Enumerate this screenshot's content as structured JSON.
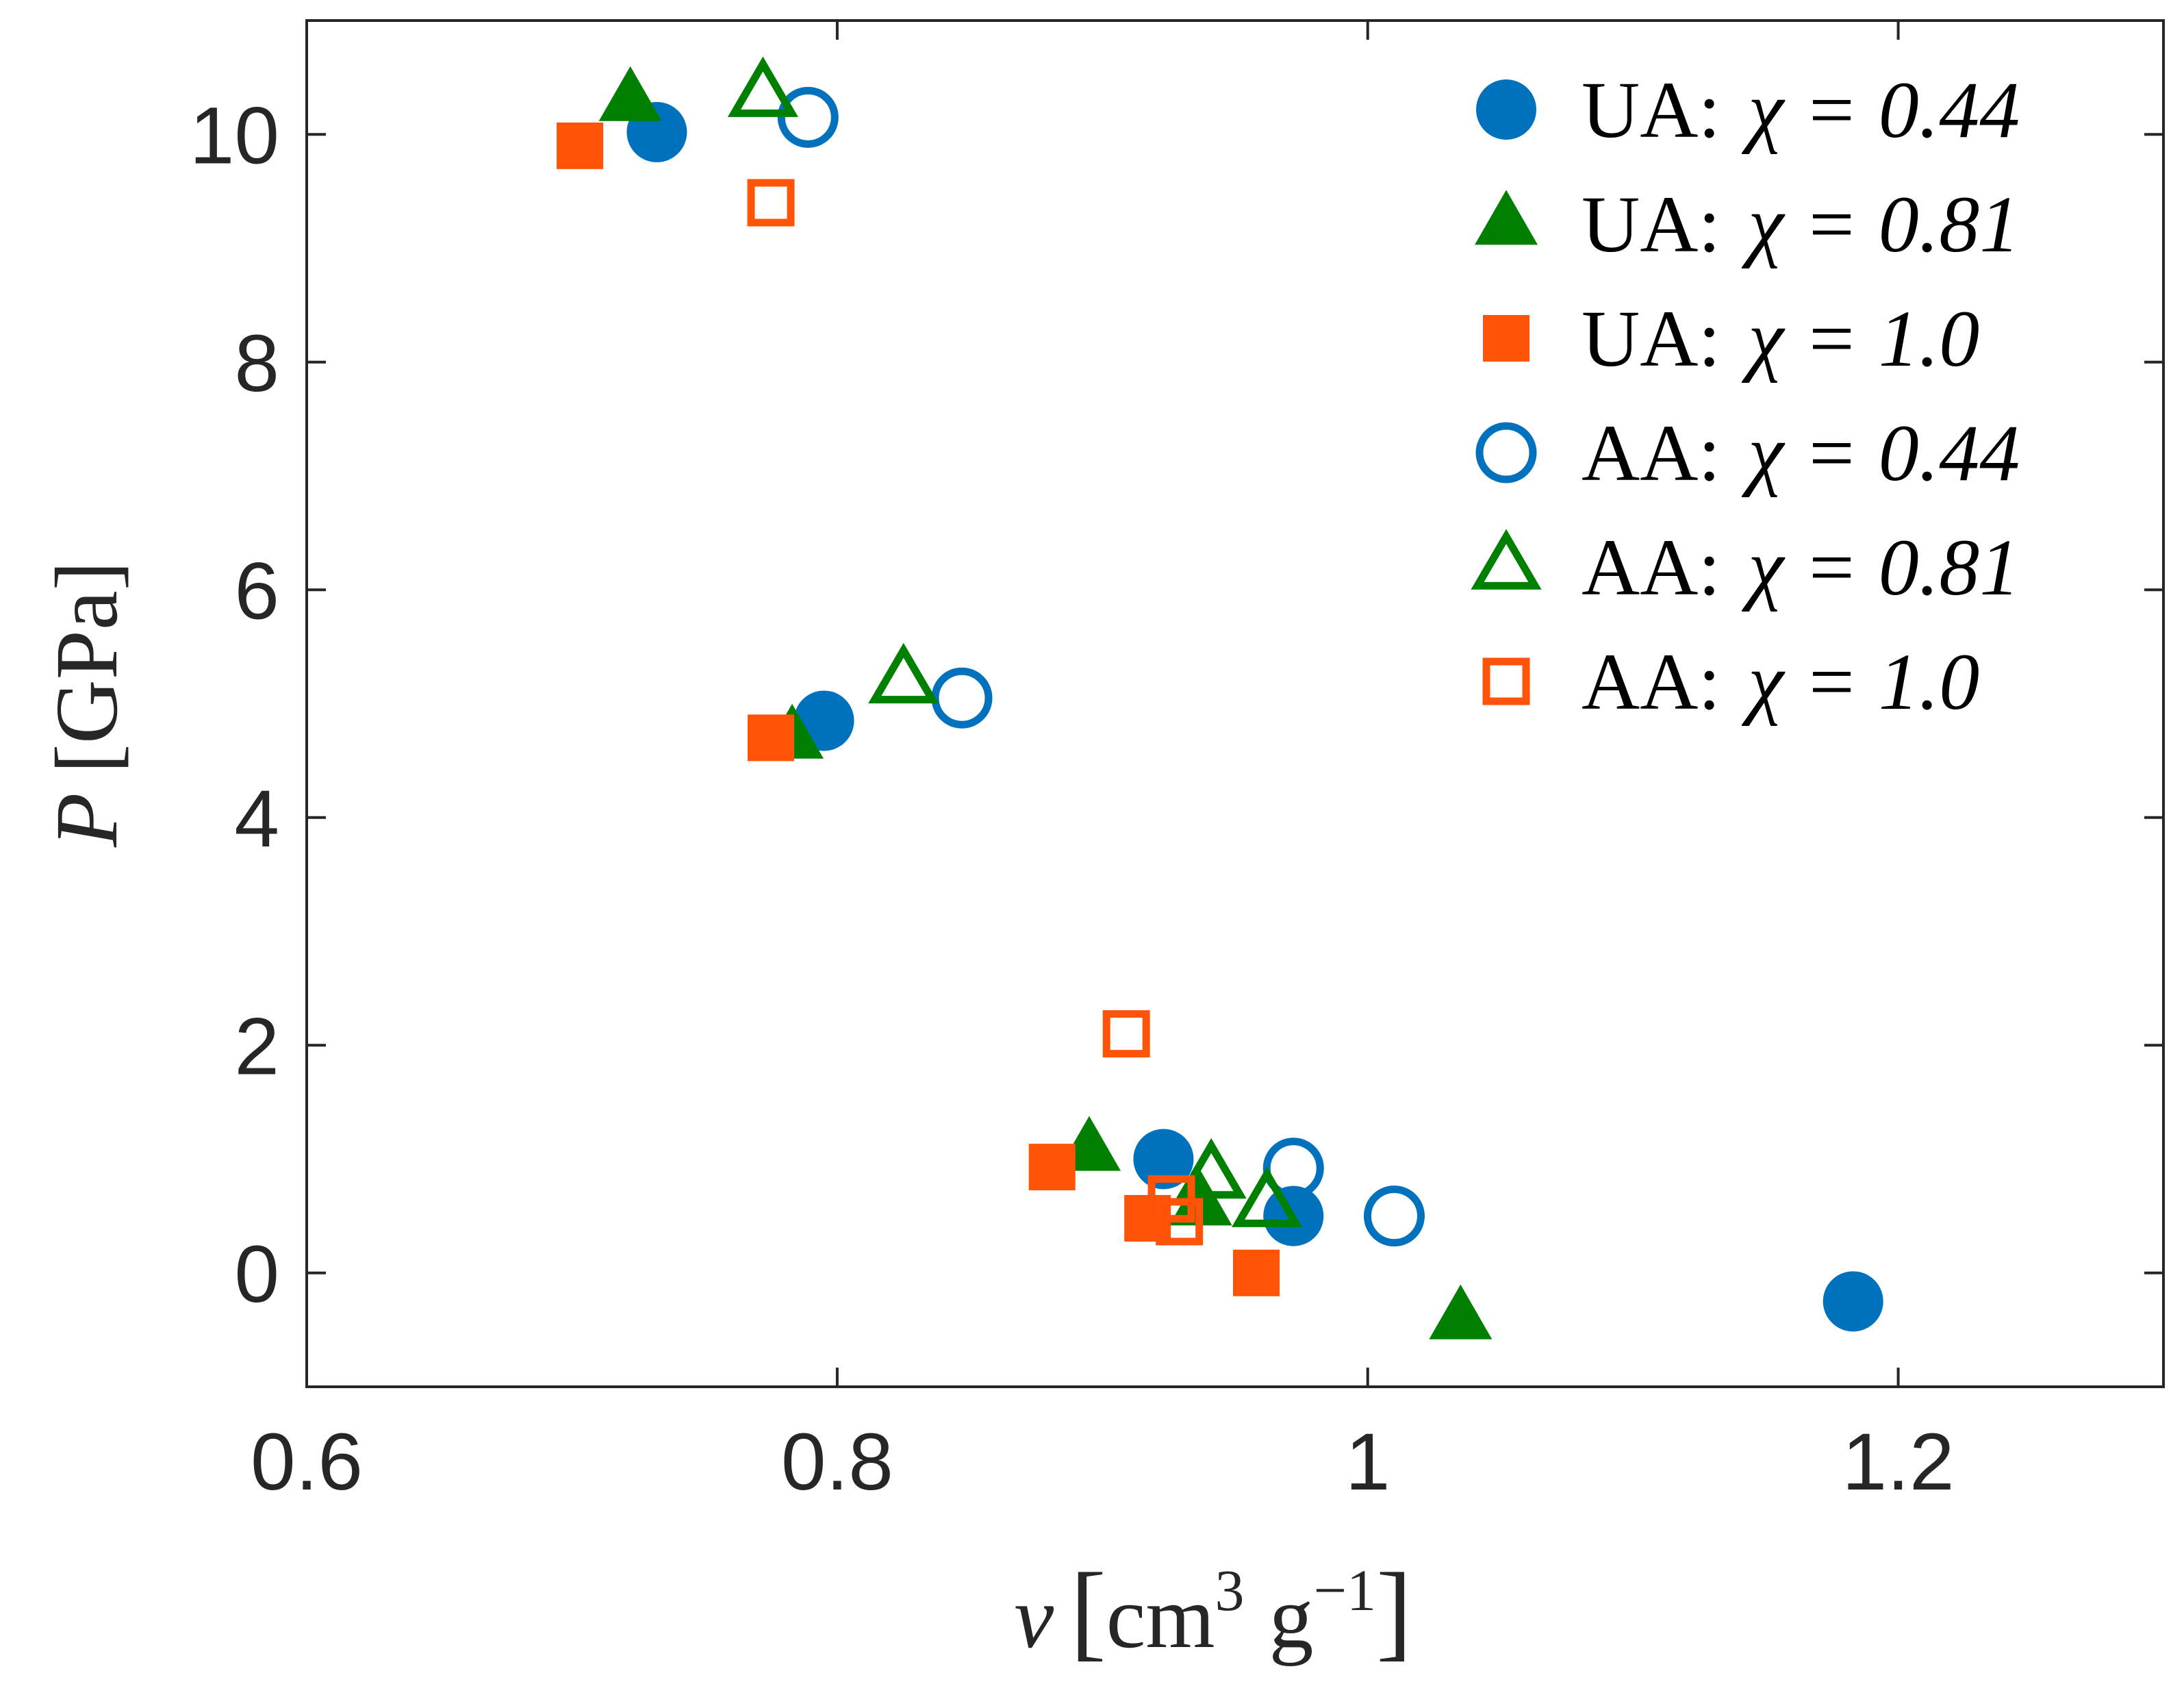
{
  "chart_data": {
    "type": "scatter",
    "title": "",
    "xlabel": {
      "var": "v",
      "bracket_open": "[",
      "unit1": "cm",
      "exp1": "3",
      "unit2": "g",
      "exp2": "−1",
      "bracket_close": "]"
    },
    "ylabel": {
      "var": "P",
      "unit": "[GPa]"
    },
    "xlim": [
      0.6,
      1.3
    ],
    "ylim": [
      -1.0,
      11.0
    ],
    "xticks": [
      0.6,
      0.8,
      1.0,
      1.2
    ],
    "xtick_labels": [
      "0.6",
      "0.8",
      "1",
      "1.2"
    ],
    "yticks": [
      0,
      2,
      4,
      6,
      8,
      10
    ],
    "ytick_labels": [
      "0",
      "2",
      "4",
      "6",
      "8",
      "10"
    ],
    "grid": false,
    "legend_position": "top-right",
    "series": [
      {
        "name": "UA: χ = 0.44",
        "prefix": "UA:",
        "chi": "χ = 0.44",
        "marker": "circle",
        "filled": true,
        "color": "#0072BD",
        "points": [
          [
            0.732,
            10.02
          ],
          [
            0.795,
            4.85
          ],
          [
            0.923,
            1.0
          ],
          [
            0.972,
            0.5
          ],
          [
            1.183,
            -0.25
          ]
        ]
      },
      {
        "name": "UA: χ = 0.81",
        "prefix": "UA:",
        "chi": "χ = 0.81",
        "marker": "triangle",
        "filled": true,
        "color": "#008000",
        "points": [
          [
            0.722,
            10.3
          ],
          [
            0.783,
            4.7
          ],
          [
            0.895,
            1.08
          ],
          [
            0.937,
            0.6
          ],
          [
            1.035,
            -0.4
          ]
        ]
      },
      {
        "name": "UA: χ = 1.0",
        "prefix": "UA:",
        "chi": "χ = 1.0",
        "marker": "square",
        "filled": true,
        "color": "#FF5308",
        "points": [
          [
            0.703,
            9.9
          ],
          [
            0.775,
            4.7
          ],
          [
            0.881,
            0.93
          ],
          [
            0.917,
            0.48
          ],
          [
            0.958,
            0.0
          ]
        ]
      },
      {
        "name": "AA: χ = 0.44",
        "prefix": "AA:",
        "chi": "χ = 0.44",
        "marker": "circle",
        "filled": false,
        "color": "#0072BD",
        "points": [
          [
            0.789,
            10.15
          ],
          [
            0.847,
            5.05
          ],
          [
            0.972,
            0.92
          ],
          [
            1.01,
            0.5
          ]
        ]
      },
      {
        "name": "AA: χ = 0.81",
        "prefix": "AA:",
        "chi": "χ = 0.81",
        "marker": "triangle",
        "filled": false,
        "color": "#008000",
        "points": [
          [
            0.772,
            10.35
          ],
          [
            0.825,
            5.2
          ],
          [
            0.941,
            0.85
          ],
          [
            0.962,
            0.6
          ]
        ]
      },
      {
        "name": "AA: χ = 1.0",
        "prefix": "AA:",
        "chi": "χ = 1.0",
        "marker": "square",
        "filled": false,
        "color": "#FF5308",
        "points": [
          [
            0.775,
            9.4
          ],
          [
            0.909,
            2.1
          ],
          [
            0.926,
            0.65
          ],
          [
            0.929,
            0.45
          ]
        ]
      }
    ]
  }
}
